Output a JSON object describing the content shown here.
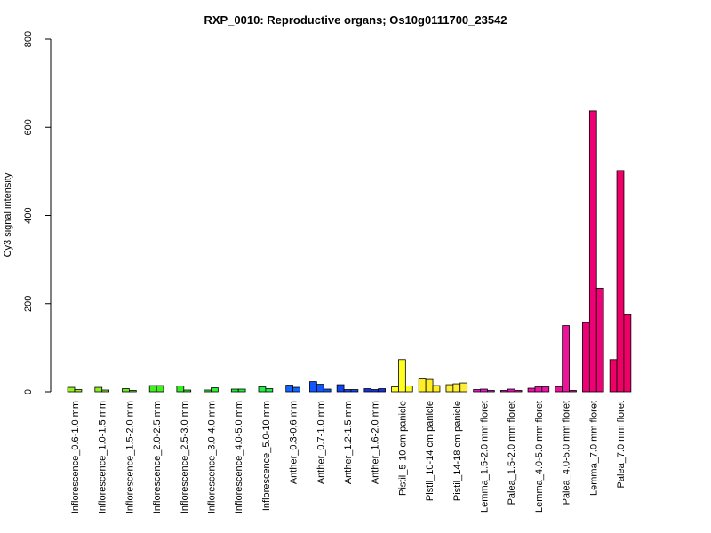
{
  "chart_data": {
    "type": "bar",
    "title": "RXP_0010: Reproductive organs; Os10g0111700_23542",
    "xlabel": "",
    "ylabel": "Cy3 signal intensity",
    "ylim": [
      0,
      800
    ],
    "yticks": [
      0,
      200,
      400,
      600,
      800
    ],
    "grid": false,
    "legend": "none",
    "groups": [
      {
        "label": "Inflorescence_0.6-1.0 mm",
        "color": "#99ee22",
        "values": [
          10,
          5
        ]
      },
      {
        "label": "Inflorescence_1.0-1.5 mm",
        "color": "#88ee22",
        "values": [
          10,
          4
        ]
      },
      {
        "label": "Inflorescence_1.5-2.0 mm",
        "color": "#66ee22",
        "values": [
          7,
          3
        ]
      },
      {
        "label": "Inflorescence_2.0-2.5 mm",
        "color": "#44ee22",
        "values": [
          14,
          14
        ]
      },
      {
        "label": "Inflorescence_2.5-3.0 mm",
        "color": "#33ee22",
        "values": [
          13,
          4
        ]
      },
      {
        "label": "Inflorescence_3.0-4.0 mm",
        "color": "#33ee33",
        "values": [
          4,
          9
        ]
      },
      {
        "label": "Inflorescence_4.0-5.0 mm",
        "color": "#22ee33",
        "values": [
          6,
          6
        ]
      },
      {
        "label": "Inflorescence_5.0-10 mm",
        "color": "#22ee44",
        "values": [
          11,
          7
        ]
      },
      {
        "label": "Anther_0.3-0.6 mm",
        "color": "#1166ff",
        "values": [
          15,
          10
        ]
      },
      {
        "label": "Anther_0.7-1.0 mm",
        "color": "#1155ff",
        "values": [
          23,
          17,
          6
        ]
      },
      {
        "label": "Anther_1.2-1.5 mm",
        "color": "#1144ee",
        "values": [
          16,
          5,
          5
        ]
      },
      {
        "label": "Anther_1.6-2.0 mm",
        "color": "#1133dd",
        "values": [
          7,
          5,
          7
        ]
      },
      {
        "label": "Pistil_5-10 cm panicle",
        "color": "#ffff22",
        "values": [
          11,
          73,
          13
        ]
      },
      {
        "label": "Pistil_10-14 cm panicle",
        "color": "#ffee22",
        "values": [
          29,
          28,
          14
        ]
      },
      {
        "label": "Pistil_14-18 cm panicle",
        "color": "#ffee33",
        "values": [
          16,
          18,
          20
        ]
      },
      {
        "label": "Lemma_1.5-2.0 mm floret",
        "color": "#ee11cc",
        "values": [
          5,
          6,
          3
        ]
      },
      {
        "label": "Palea_1.5-2.0 mm floret",
        "color": "#ee11bb",
        "values": [
          3,
          6,
          3
        ]
      },
      {
        "label": "Lemma_4.0-5.0 mm floret",
        "color": "#ee11aa",
        "values": [
          8,
          11,
          11
        ]
      },
      {
        "label": "Palea_4.0-5.0 mm floret",
        "color": "#ee1199",
        "values": [
          11,
          150,
          3
        ]
      },
      {
        "label": "Lemma_7.0 mm floret",
        "color": "#ee0077",
        "values": [
          157,
          637,
          235
        ]
      },
      {
        "label": "Palea_7.0 mm floret",
        "color": "#ee0066",
        "values": [
          73,
          502,
          175
        ]
      }
    ]
  }
}
